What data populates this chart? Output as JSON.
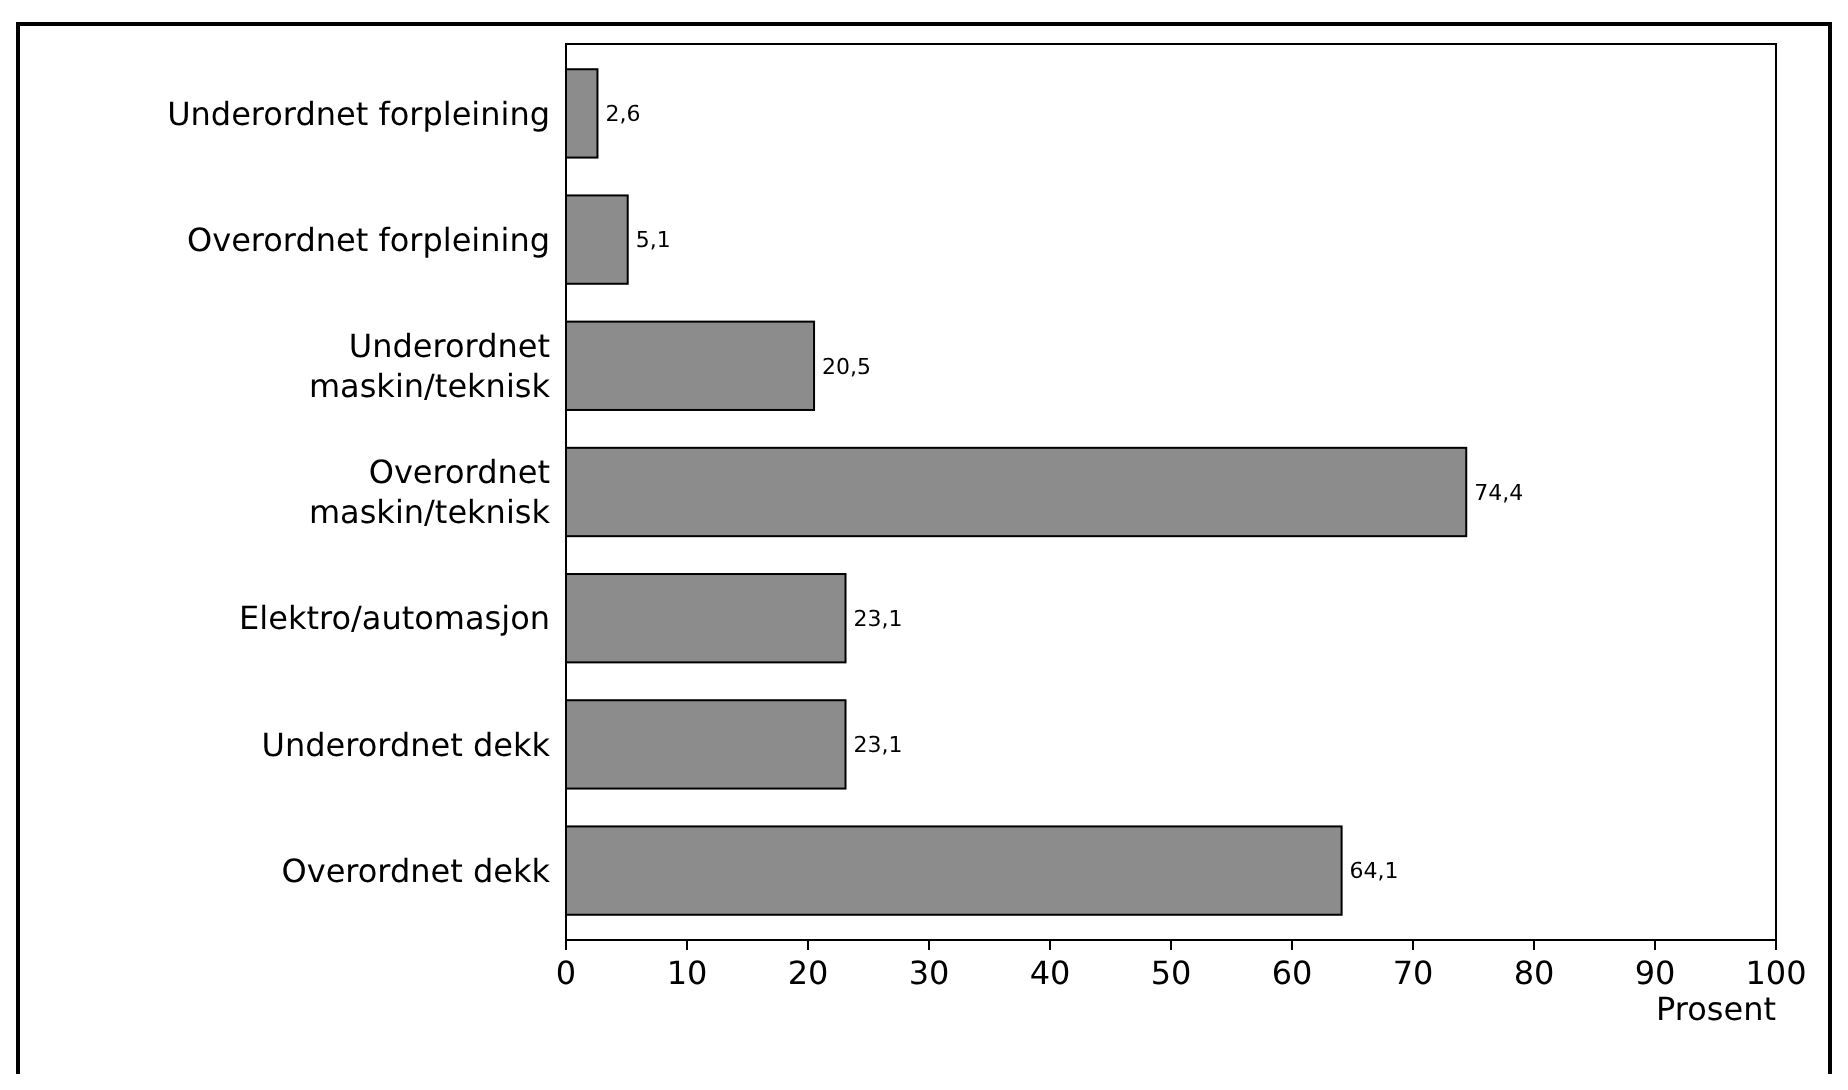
{
  "chart_data": {
    "type": "bar",
    "orientation": "horizontal",
    "xlabel": "Prosent",
    "categories": [
      "Underordnet forpleining",
      "Overordnet forpleining",
      "Underordnet\nmaskin/teknisk",
      "Overordnet\nmaskin/teknisk",
      "Elektro/automasjon",
      "Underordnet dekk",
      "Overordnet dekk"
    ],
    "values": [
      2.6,
      5.1,
      20.5,
      74.4,
      23.1,
      23.1,
      64.1
    ],
    "value_labels": [
      "2,6",
      "5,1",
      "20,5",
      "74,4",
      "23,1",
      "23,1",
      "64,1"
    ],
    "color": "#8c8c8c",
    "xlim": [
      0,
      100
    ],
    "xticks": [
      0,
      10,
      20,
      30,
      40,
      50,
      60,
      70,
      80,
      90,
      100
    ],
    "grid": false
  }
}
